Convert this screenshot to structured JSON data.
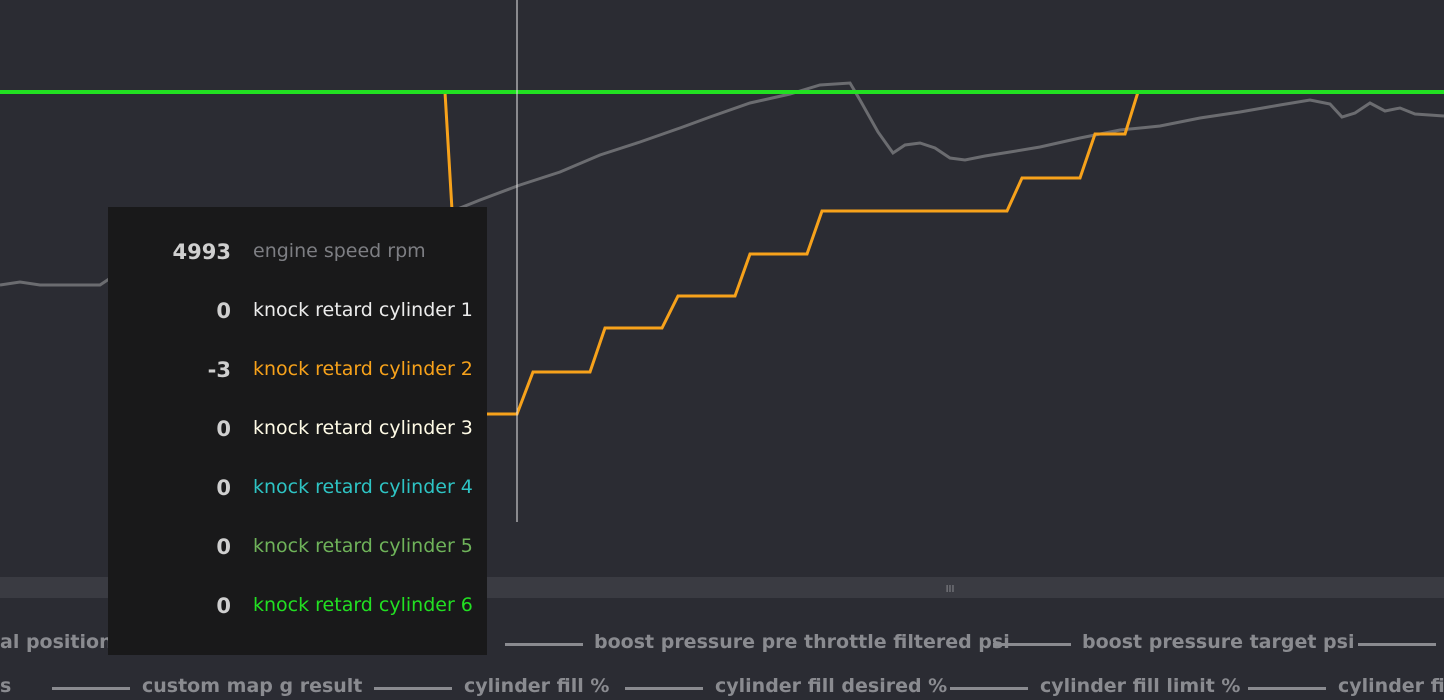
{
  "tooltip": {
    "rows": [
      {
        "value": "4993",
        "label": "engine speed rpm",
        "color": "#7d7e83"
      },
      {
        "value": "0",
        "label": "knock retard cylinder 1",
        "color": "#ececec"
      },
      {
        "value": "-3",
        "label": "knock retard cylinder 2",
        "color": "#f7a21b"
      },
      {
        "value": "0",
        "label": "knock retard cylinder 3",
        "color": "#fffbe6"
      },
      {
        "value": "0",
        "label": "knock retard cylinder 4",
        "color": "#2ec4c4"
      },
      {
        "value": "0",
        "label": "knock retard cylinder 5",
        "color": "#6fb35a"
      },
      {
        "value": "0",
        "label": "knock retard cylinder 6",
        "color": "#22e022"
      }
    ]
  },
  "legend": {
    "rows": [
      [
        "al position %",
        "boost pressure pre throttle filtered psi",
        "boost pressure target psi",
        ""
      ],
      [
        "s",
        "custom map g result",
        "cylinder fill %",
        "cylinder fill desired %",
        "cylinder fill limit %",
        "cylinder fill"
      ]
    ]
  },
  "splitter": {
    "grip": "III"
  }
}
